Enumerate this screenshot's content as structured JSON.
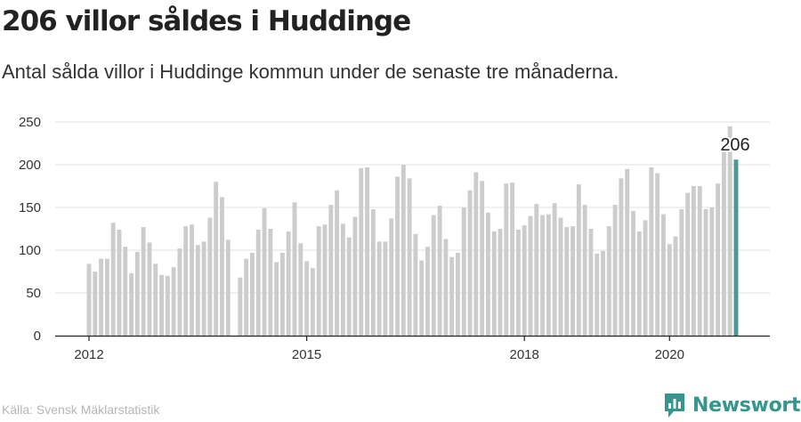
{
  "title": "206 villor såldes i Huddinge",
  "subtitle": "Antal sålda villor i Huddinge kommun under de senaste tre månaderna.",
  "source": "Källa: Svensk Mäklarstatistik",
  "brand": {
    "name": "Newsworthy",
    "logo_icon": "newsworthy-chart-bubble-icon",
    "color": "#34968d"
  },
  "colors": {
    "bar": "#cccccc",
    "highlight": "#4a9a93",
    "grid": "#e2e2e2",
    "axis": "#222222"
  },
  "chart_data": {
    "type": "bar",
    "title": "206 villor såldes i Huddinge",
    "xlabel": "",
    "ylabel": "",
    "ylim": [
      0,
      250
    ],
    "yticks": [
      "0",
      "50",
      "100",
      "150",
      "200",
      "250"
    ],
    "xticks": [
      {
        "label": "2012",
        "index": 0
      },
      {
        "label": "2015",
        "index": 36
      },
      {
        "label": "2018",
        "index": 72
      },
      {
        "label": "2020",
        "index": 96
      }
    ],
    "grid": true,
    "highlight_index": 107,
    "highlight_label": "206",
    "values": [
      84,
      75,
      90,
      90,
      132,
      124,
      104,
      73,
      98,
      127,
      109,
      84,
      71,
      70,
      80,
      102,
      128,
      130,
      106,
      110,
      138,
      180,
      162,
      112,
      null,
      68,
      90,
      97,
      124,
      149,
      125,
      86,
      97,
      122,
      156,
      108,
      87,
      79,
      128,
      130,
      153,
      170,
      131,
      115,
      139,
      196,
      197,
      148,
      110,
      110,
      137,
      186,
      200,
      184,
      119,
      88,
      104,
      141,
      152,
      113,
      92,
      97,
      150,
      170,
      191,
      181,
      144,
      122,
      125,
      178,
      179,
      124,
      129,
      140,
      154,
      141,
      142,
      155,
      138,
      127,
      128,
      177,
      153,
      125,
      96,
      99,
      128,
      153,
      184,
      195,
      146,
      122,
      135,
      197,
      190,
      142,
      107,
      116,
      148,
      167,
      175,
      175,
      148,
      150,
      178,
      216,
      245,
      206
    ]
  }
}
